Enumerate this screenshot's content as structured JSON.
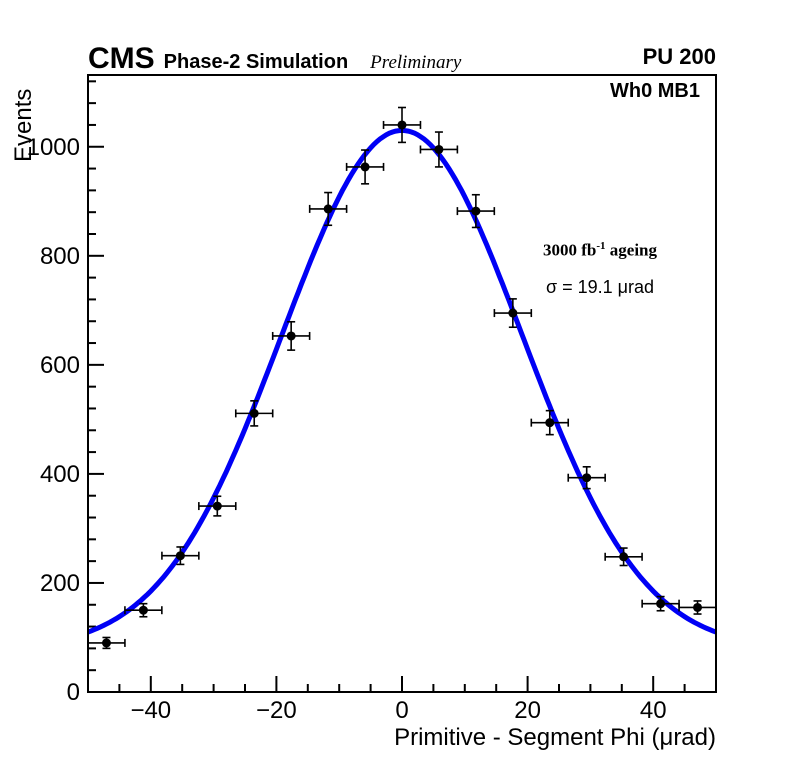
{
  "header": {
    "experiment": "CMS",
    "label": "Phase-2 Simulation",
    "sublabel": "Preliminary",
    "right_label": "PU 200"
  },
  "plot": {
    "corner_label": "Wh0 MB1",
    "annotation1_main": "3000 fb",
    "annotation1_sup": "-1",
    "annotation1_tail": " ageing",
    "annotation2": "σ = 19.1 μrad"
  },
  "chart_data": {
    "type": "scatter",
    "title": "",
    "xlabel": "Primitive - Segment Phi (μrad)",
    "ylabel": "Events",
    "xlim": [
      -50,
      50
    ],
    "ylim": [
      0,
      1131.6
    ],
    "grid": false,
    "x_major_ticks": [
      {
        "value": -40,
        "label": "−40"
      },
      {
        "value": -20,
        "label": "−20"
      },
      {
        "value": 0,
        "label": "0"
      },
      {
        "value": 20,
        "label": "20"
      },
      {
        "value": 40,
        "label": "40"
      }
    ],
    "x_minor_step": 5,
    "y_major_ticks": [
      {
        "value": 0,
        "label": "0"
      },
      {
        "value": 200,
        "label": "200"
      },
      {
        "value": 400,
        "label": "400"
      },
      {
        "value": 600,
        "label": "600"
      },
      {
        "value": 800,
        "label": "800"
      },
      {
        "value": 1000,
        "label": "1000"
      }
    ],
    "y_minor_step": 40,
    "points": {
      "x": [
        -47.06,
        -41.18,
        -35.29,
        -29.41,
        -23.53,
        -17.65,
        -11.76,
        -5.88,
        0,
        5.88,
        11.76,
        17.65,
        23.53,
        29.41,
        35.29,
        41.18,
        47.06
      ],
      "y": [
        90,
        150,
        250,
        341,
        511,
        653,
        886,
        963,
        1040,
        995,
        882,
        695,
        494,
        393,
        248,
        162,
        155
      ],
      "yerr": [
        10,
        12,
        16,
        18,
        23,
        26,
        30,
        31,
        32,
        32,
        30,
        26,
        22,
        20,
        16,
        13,
        12
      ],
      "xerr": 2.94,
      "marker_color": "#000000",
      "marker_radius": 4.5
    },
    "fit": {
      "type": "gaussian_plus_const",
      "amplitude": 951,
      "mean": 0,
      "sigma": 19.1,
      "offset": 79,
      "color": "#0000f5",
      "linewidth": 5
    }
  }
}
